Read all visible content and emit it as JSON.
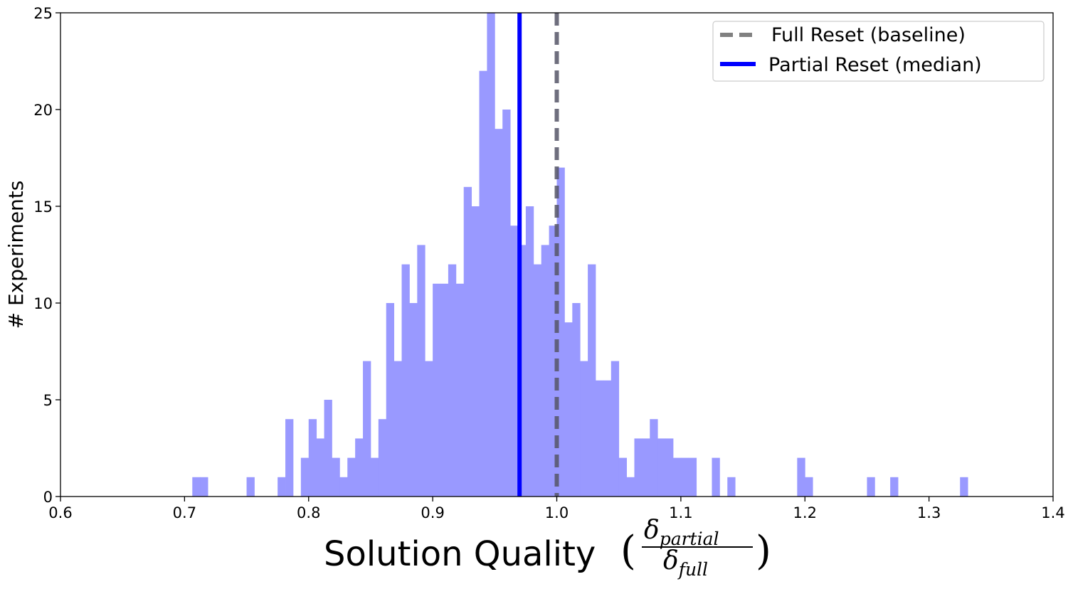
{
  "chart_data": {
    "type": "bar",
    "subtype": "histogram",
    "bin_width": 0.00625,
    "bin_start": 0.70625,
    "counts": [
      1,
      1,
      0,
      0,
      0,
      0,
      0,
      1,
      0,
      0,
      0,
      1,
      4,
      0,
      2,
      4,
      3,
      5,
      2,
      1,
      2,
      3,
      7,
      2,
      4,
      10,
      7,
      12,
      10,
      13,
      7,
      11,
      11,
      12,
      11,
      16,
      15,
      22,
      25,
      19,
      20,
      14,
      13,
      15,
      12,
      13,
      14,
      17,
      9,
      10,
      7,
      12,
      6,
      6,
      7,
      2,
      1,
      3,
      3,
      4,
      3,
      3,
      2,
      2,
      2,
      0,
      0,
      2,
      0,
      1,
      0,
      0,
      0,
      0,
      0,
      0,
      0,
      0,
      2,
      1,
      0,
      0,
      0,
      0,
      0,
      0,
      0,
      1,
      0,
      0,
      1,
      0,
      0,
      0,
      0,
      0,
      0,
      0,
      0,
      1
    ],
    "bar_color": "#9999ff",
    "xlim": [
      0.6,
      1.4
    ],
    "ylim": [
      0,
      25
    ],
    "xticks": [
      0.6,
      0.7,
      0.8,
      0.9,
      1.0,
      1.1,
      1.2,
      1.3,
      1.4
    ],
    "xtick_labels": [
      "0.6",
      "0.7",
      "0.8",
      "0.9",
      "1.0",
      "1.1",
      "1.2",
      "1.3",
      "1.4"
    ],
    "yticks": [
      0,
      5,
      10,
      15,
      20,
      25
    ],
    "ytick_labels": [
      "0",
      "5",
      "10",
      "15",
      "20",
      "25"
    ],
    "ylabel": "# Experiments",
    "xlabel": {
      "text": "Solution Quality",
      "numerator": "partial",
      "denominator": "full",
      "symbol": "δ"
    },
    "lines": [
      {
        "name": "Full Reset (baseline)",
        "x": 1.0,
        "color": "#555566",
        "legend_color": "#808080",
        "style": "dashed"
      },
      {
        "name": "Partial Reset (median)",
        "x": 0.97,
        "color": "#0000ff",
        "legend_color": "#0000ff",
        "style": "solid"
      }
    ],
    "legend_position": "top-right",
    "grid": false
  }
}
